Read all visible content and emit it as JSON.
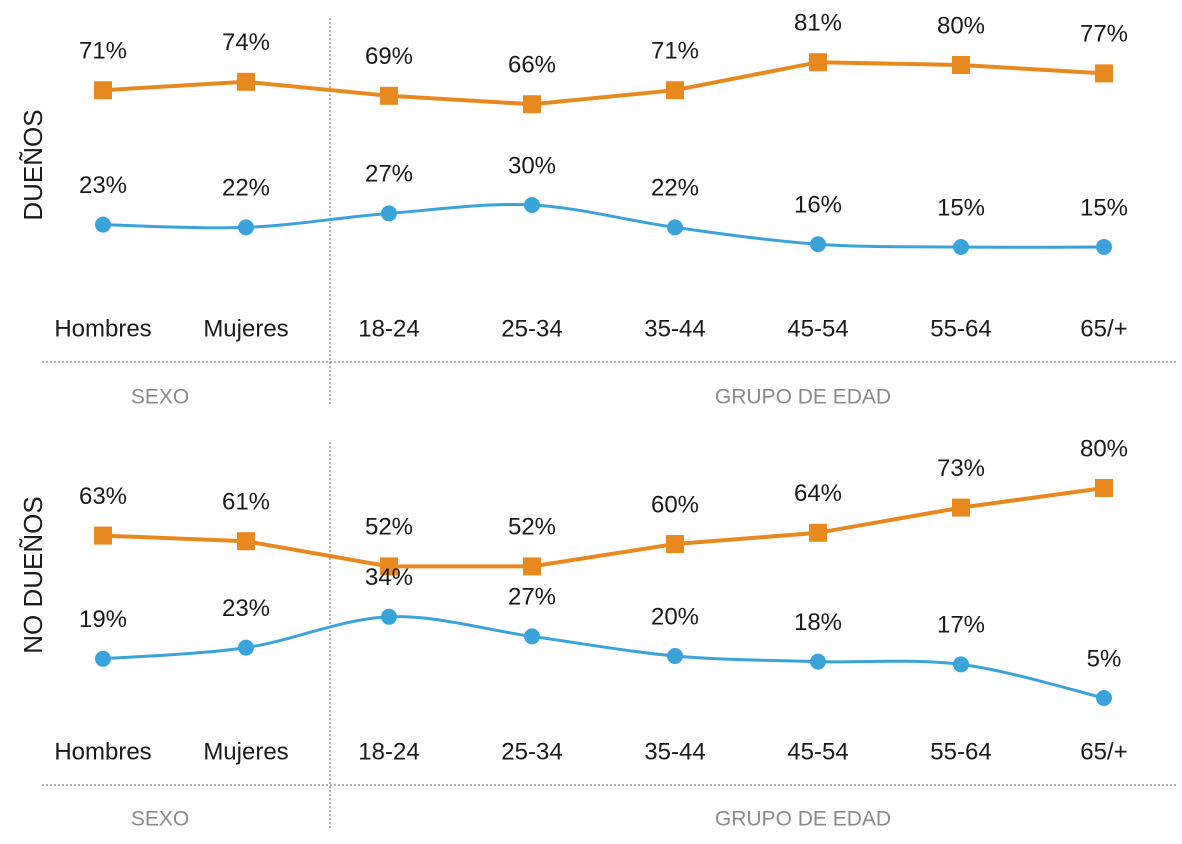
{
  "chart_data": [
    {
      "type": "line",
      "ylabel": "DUEÑOS",
      "categories": [
        "Hombres",
        "Mujeres",
        "18-24",
        "25-34",
        "35-44",
        "45-54",
        "55-64",
        "65/+"
      ],
      "group_labels": [
        "SEXO",
        "GRUPO DE EDAD"
      ],
      "series": [
        {
          "color": "#e8891f",
          "marker": "square",
          "smooth": false,
          "values": [
            71,
            74,
            69,
            66,
            71,
            81,
            80,
            77
          ],
          "value_labels": [
            "71%",
            "74%",
            "69%",
            "66%",
            "71%",
            "81%",
            "80%",
            "77%"
          ]
        },
        {
          "color": "#3aa3da",
          "marker": "circle",
          "smooth": true,
          "values": [
            23,
            22,
            27,
            30,
            22,
            16,
            15,
            15
          ],
          "value_labels": [
            "23%",
            "22%",
            "27%",
            "30%",
            "22%",
            "16%",
            "15%",
            "15%"
          ]
        }
      ]
    },
    {
      "type": "line",
      "ylabel": "NO DUEÑOS",
      "categories": [
        "Hombres",
        "Mujeres",
        "18-24",
        "25-34",
        "35-44",
        "45-54",
        "55-64",
        "65/+"
      ],
      "group_labels": [
        "SEXO",
        "GRUPO DE EDAD"
      ],
      "series": [
        {
          "color": "#e8891f",
          "marker": "square",
          "smooth": false,
          "values": [
            63,
            61,
            52,
            52,
            60,
            64,
            73,
            80
          ],
          "value_labels": [
            "63%",
            "61%",
            "52%",
            "52%",
            "60%",
            "64%",
            "73%",
            "80%"
          ]
        },
        {
          "color": "#3aa3da",
          "marker": "circle",
          "smooth": true,
          "values": [
            19,
            23,
            34,
            27,
            20,
            18,
            17,
            5
          ],
          "value_labels": [
            "19%",
            "23%",
            "34%",
            "27%",
            "20%",
            "18%",
            "17%",
            "5%"
          ]
        }
      ]
    }
  ]
}
